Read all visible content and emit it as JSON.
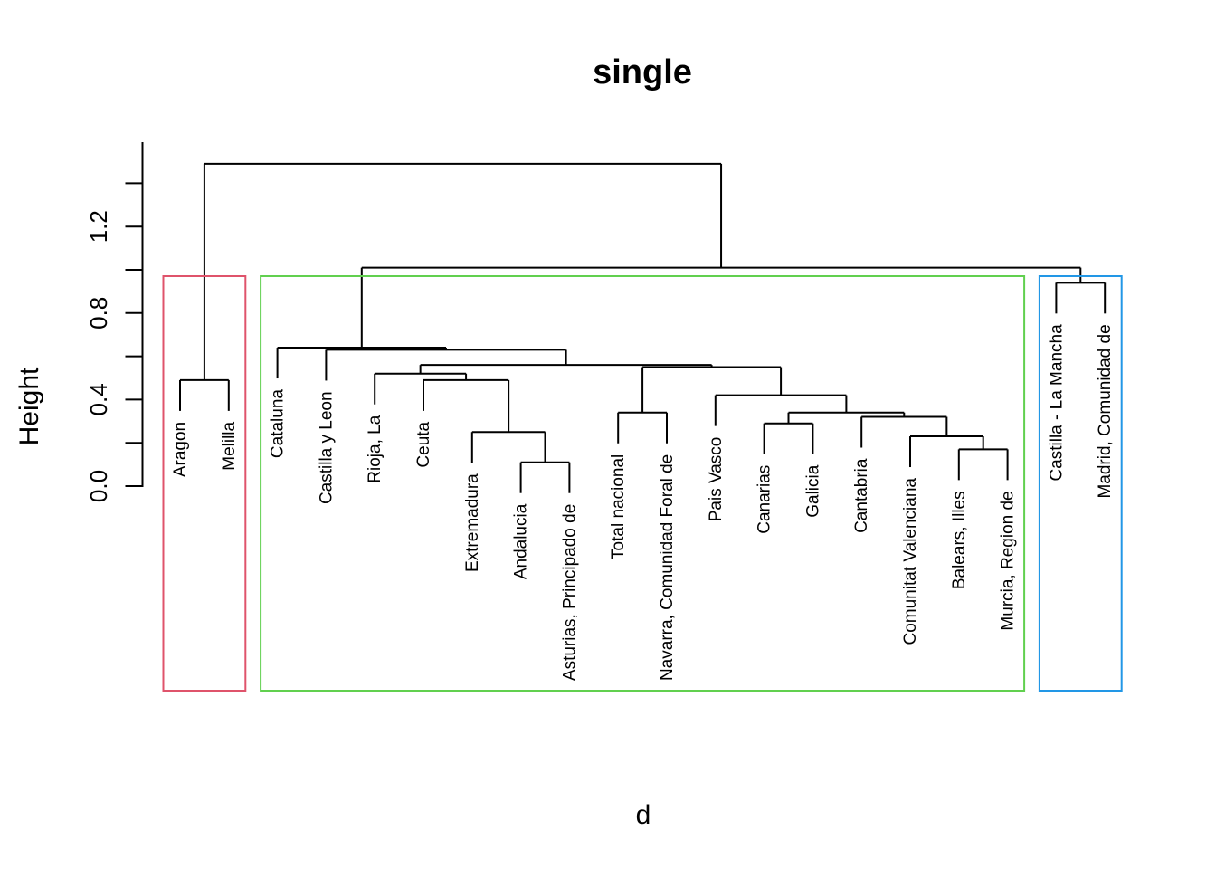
{
  "title": "single",
  "xlabel": "d",
  "ylabel": "Height",
  "colors": {
    "background": "#FFFFFF",
    "line": "#000000",
    "cluster_red": "#DF536B",
    "cluster_green": "#61D04F",
    "cluster_blue": "#2297E6"
  },
  "axis": {
    "side": "left",
    "ticks": [
      {
        "v": 0.0,
        "t": "0.0"
      },
      {
        "v": 0.2,
        "t": ""
      },
      {
        "v": 0.4,
        "t": "0.4"
      },
      {
        "v": 0.6,
        "t": ""
      },
      {
        "v": 0.8,
        "t": "0.8"
      },
      {
        "v": 1.0,
        "t": ""
      },
      {
        "v": 1.2,
        "t": "1.2"
      },
      {
        "v": 1.4,
        "t": ""
      }
    ]
  },
  "chart_data": {
    "type": "dendrogram",
    "title": "single",
    "xlabel": "d",
    "ylabel": "Height",
    "ylim": [
      0,
      1.4
    ],
    "leaves_in_order": [
      "Aragon",
      "Melilla",
      "Cataluna",
      "Castilla y Leon",
      "Rioja, La",
      "Ceuta",
      "Extremadura",
      "Andalucia",
      "Asturias, Principado de",
      "Total nacional",
      "Navarra, Comunidad Foral de",
      "Pais Vasco",
      "Canarias",
      "Galicia",
      "Cantabria",
      "Comunitat Valenciana",
      "Balears, Illes",
      "Murcia, Region de",
      "Castilla - La Mancha",
      "Madrid, Comunidad de"
    ],
    "tree": {
      "h": 1.49,
      "c": [
        {
          "h": 0.49,
          "c": [
            "Aragon",
            "Melilla"
          ]
        },
        {
          "h": 1.01,
          "c": [
            {
              "h": 0.64,
              "c": [
                "Cataluna",
                {
                  "h": 0.63,
                  "c": [
                    "Castilla y Leon",
                    {
                      "h": 0.56,
                      "c": [
                        {
                          "h": 0.52,
                          "c": [
                            "Rioja, La",
                            {
                              "h": 0.49,
                              "c": [
                                "Ceuta",
                                {
                                  "h": 0.25,
                                  "c": [
                                    "Extremadura",
                                    {
                                      "h": 0.11,
                                      "c": [
                                        "Andalucia",
                                        "Asturias, Principado de"
                                      ]
                                    }
                                  ]
                                }
                              ]
                            }
                          ]
                        },
                        {
                          "h": 0.55,
                          "c": [
                            {
                              "h": 0.34,
                              "c": [
                                "Total nacional",
                                "Navarra, Comunidad Foral de"
                              ]
                            },
                            {
                              "h": 0.42,
                              "c": [
                                "Pais Vasco",
                                {
                                  "h": 0.34,
                                  "c": [
                                    {
                                      "h": 0.29,
                                      "c": [
                                        "Canarias",
                                        "Galicia"
                                      ]
                                    },
                                    {
                                      "h": 0.32,
                                      "c": [
                                        "Cantabria",
                                        {
                                          "h": 0.23,
                                          "c": [
                                            "Comunitat Valenciana",
                                            {
                                              "h": 0.17,
                                              "c": [
                                                "Balears, Illes",
                                                "Murcia, Region de"
                                              ]
                                            }
                                          ]
                                        }
                                      ]
                                    }
                                  ]
                                }
                              ]
                            }
                          ]
                        }
                      ]
                    }
                  ]
                }
              ]
            },
            {
              "h": 0.94,
              "c": [
                "Castilla - La Mancha",
                "Madrid, Comunidad de"
              ]
            }
          ]
        }
      ]
    },
    "clusters": [
      {
        "color": "#DF536B",
        "leaves": [
          "Aragon",
          "Melilla"
        ]
      },
      {
        "color": "#61D04F",
        "leaves": [
          "Cataluna",
          "Castilla y Leon",
          "Rioja, La",
          "Ceuta",
          "Extremadura",
          "Andalucia",
          "Asturias, Principado de",
          "Total nacional",
          "Navarra, Comunidad Foral de",
          "Pais Vasco",
          "Canarias",
          "Galicia",
          "Cantabria",
          "Comunitat Valenciana",
          "Balears, Illes",
          "Murcia, Region de"
        ]
      },
      {
        "color": "#2297E6",
        "leaves": [
          "Castilla - La Mancha",
          "Madrid, Comunidad de"
        ]
      }
    ]
  }
}
